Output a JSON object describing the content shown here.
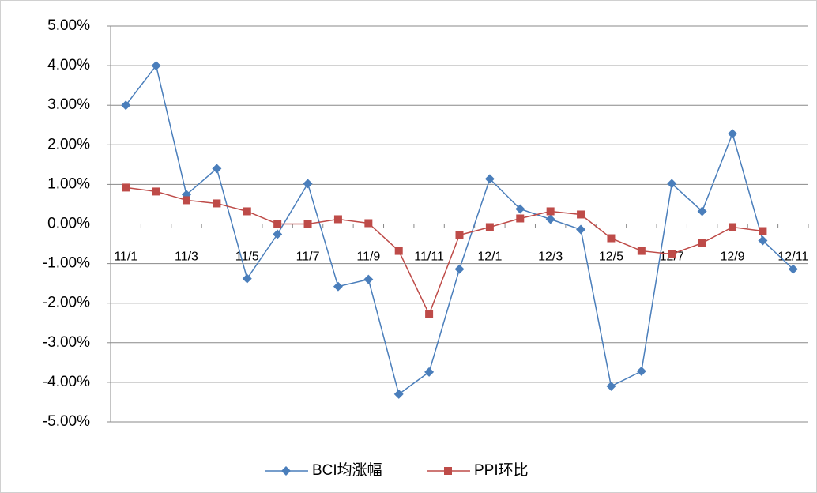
{
  "chart_data": {
    "type": "line",
    "categories": [
      "11/1",
      null,
      "11/3",
      null,
      "11/5",
      null,
      "11/7",
      null,
      "11/9",
      null,
      "11/11",
      null,
      "12/1",
      null,
      "12/3",
      null,
      "12/5",
      null,
      "12/7",
      null,
      "12/9",
      null,
      "12/11"
    ],
    "series": [
      {
        "name": "BCI均涨幅",
        "color": "#4a7ebb",
        "marker": "diamond",
        "values": [
          3.0,
          4.0,
          0.74,
          1.4,
          -1.38,
          -0.26,
          1.02,
          -1.58,
          -1.4,
          -4.3,
          -3.74,
          -1.14,
          1.14,
          0.38,
          0.12,
          -0.14,
          -4.1,
          -3.72,
          1.02,
          0.32,
          2.28,
          -0.42,
          -1.14
        ]
      },
      {
        "name": "PPI环比",
        "color": "#be4b48",
        "marker": "square",
        "values": [
          0.92,
          0.82,
          0.6,
          0.52,
          0.32,
          0,
          0,
          0.12,
          0.02,
          -0.68,
          -2.28,
          -0.28,
          -0.08,
          0.14,
          0.32,
          0.24,
          -0.36,
          -0.68,
          -0.76,
          -0.48,
          -0.08,
          -0.18,
          null
        ]
      }
    ],
    "ylim": [
      -5,
      5
    ],
    "yticks": [
      {
        "value": -5,
        "label": "-5.00%"
      },
      {
        "value": -4,
        "label": "-4.00%"
      },
      {
        "value": -3,
        "label": "-3.00%"
      },
      {
        "value": -2,
        "label": "-2.00%"
      },
      {
        "value": -1,
        "label": "-1.00%"
      },
      {
        "value": 0,
        "label": "0.00%"
      },
      {
        "value": 1,
        "label": "1.00%"
      },
      {
        "value": 2,
        "label": "2.00%"
      },
      {
        "value": 3,
        "label": "3.00%"
      },
      {
        "value": 4,
        "label": "4.00%"
      },
      {
        "value": 5,
        "label": "5.00%"
      }
    ],
    "grid": true,
    "legend": "bottom"
  }
}
